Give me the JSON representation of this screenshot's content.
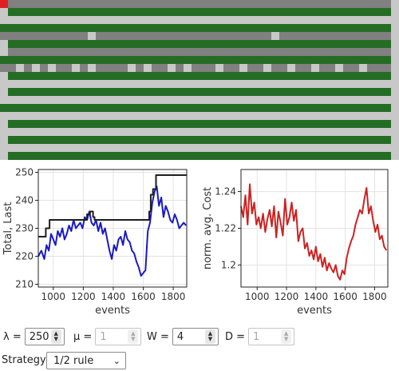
{
  "grid": {
    "colors": {
      "dark": "#256c25",
      "gray": "#808080",
      "light": "#c8c8c8",
      "red": "#e02020"
    },
    "rows": 20,
    "cols": 50,
    "cell": 10
  },
  "chart_data": [
    {
      "type": "line",
      "xlabel": "events",
      "ylabel": "Total, Last",
      "xlim": [
        900,
        1890
      ],
      "ylim": [
        209,
        251
      ],
      "xticks": [
        "1000",
        "1200",
        "1400",
        "1600",
        "1800"
      ],
      "xtick_values": [
        1000,
        1200,
        1400,
        1600,
        1800
      ],
      "yticks": [
        "210",
        "220",
        "230",
        "240",
        "250"
      ],
      "ytick_values": [
        210,
        220,
        230,
        240,
        250
      ],
      "series": [
        {
          "color": "#1a1ac4",
          "x": [
            900,
            920,
            940,
            955,
            970,
            985,
            1000,
            1015,
            1030,
            1045,
            1060,
            1075,
            1090,
            1105,
            1120,
            1135,
            1150,
            1165,
            1180,
            1195,
            1210,
            1225,
            1240,
            1255,
            1270,
            1285,
            1300,
            1315,
            1330,
            1345,
            1360,
            1375,
            1390,
            1405,
            1420,
            1435,
            1450,
            1465,
            1480,
            1495,
            1510,
            1525,
            1540,
            1555,
            1570,
            1585,
            1600,
            1615,
            1630,
            1645,
            1660,
            1675,
            1690,
            1705,
            1720,
            1735,
            1750,
            1765,
            1780,
            1795,
            1810,
            1825,
            1840,
            1855,
            1870,
            1885
          ],
          "y": [
            220,
            222,
            219,
            224,
            222,
            228,
            226,
            224,
            229,
            227,
            230,
            226,
            228,
            231,
            229,
            233,
            230,
            231,
            232,
            230,
            234,
            233,
            236,
            232,
            231,
            233,
            229,
            232,
            228,
            230,
            226,
            222,
            219,
            224,
            222,
            226,
            227,
            224,
            229,
            226,
            225,
            222,
            221,
            218,
            216,
            213,
            214,
            215,
            229,
            232,
            239,
            243,
            245,
            238,
            241,
            234,
            238,
            236,
            233,
            232,
            235,
            233,
            230,
            231,
            232,
            231
          ]
        },
        {
          "color": "#1e1e1e",
          "x": [
            900,
            950,
            950,
            975,
            975,
            1085,
            1085,
            1225,
            1225,
            1245,
            1245,
            1265,
            1265,
            1275,
            1275,
            1640,
            1640,
            1650,
            1650,
            1665,
            1665,
            1685,
            1685,
            1890
          ],
          "y": [
            227,
            227,
            230,
            230,
            233,
            233,
            233,
            233,
            235,
            235,
            236,
            236,
            234,
            234,
            233,
            233,
            236,
            236,
            242,
            242,
            244,
            244,
            249,
            249
          ]
        }
      ]
    },
    {
      "type": "line",
      "xlabel": "events",
      "ylabel": "norm. avg. Cost",
      "xlim": [
        890,
        1890
      ],
      "ylim": [
        1.188,
        1.252
      ],
      "xticks": [
        "1000",
        "1200",
        "1400",
        "1600",
        "1800"
      ],
      "xtick_values": [
        1000,
        1200,
        1400,
        1600,
        1800
      ],
      "yticks": [
        "1.2",
        "1.22",
        "1.24"
      ],
      "ytick_values": [
        1.2,
        1.22,
        1.24
      ],
      "series": [
        {
          "color": "#cc2222",
          "x": [
            890,
            905,
            920,
            935,
            950,
            965,
            980,
            995,
            1010,
            1025,
            1040,
            1055,
            1070,
            1085,
            1100,
            1115,
            1130,
            1145,
            1160,
            1175,
            1190,
            1205,
            1220,
            1235,
            1250,
            1265,
            1280,
            1295,
            1310,
            1325,
            1340,
            1355,
            1370,
            1385,
            1400,
            1415,
            1430,
            1445,
            1460,
            1475,
            1490,
            1505,
            1520,
            1535,
            1550,
            1565,
            1580,
            1595,
            1610,
            1625,
            1640,
            1655,
            1670,
            1685,
            1700,
            1715,
            1730,
            1745,
            1760,
            1775,
            1790,
            1805,
            1820,
            1835,
            1850,
            1865,
            1880
          ],
          "y": [
            1.232,
            1.226,
            1.238,
            1.222,
            1.244,
            1.228,
            1.234,
            1.222,
            1.226,
            1.22,
            1.228,
            1.218,
            1.225,
            1.23,
            1.221,
            1.232,
            1.215,
            1.229,
            1.223,
            1.216,
            1.236,
            1.222,
            1.226,
            1.234,
            1.224,
            1.23,
            1.213,
            1.218,
            1.22,
            1.209,
            1.212,
            1.205,
            1.208,
            1.203,
            1.21,
            1.202,
            1.206,
            1.199,
            1.204,
            1.197,
            1.201,
            1.198,
            1.196,
            1.2,
            1.194,
            1.192,
            1.197,
            1.195,
            1.204,
            1.209,
            1.213,
            1.216,
            1.222,
            1.226,
            1.23,
            1.228,
            1.236,
            1.242,
            1.228,
            1.232,
            1.224,
            1.218,
            1.222,
            1.214,
            1.216,
            1.21,
            1.208
          ]
        }
      ]
    }
  ],
  "controls": {
    "lambda": {
      "label": "λ =",
      "value": "250"
    },
    "mu": {
      "label": "μ =",
      "value": "1"
    },
    "w": {
      "label": "W =",
      "value": "4"
    },
    "d": {
      "label": "D =",
      "value": "1"
    },
    "strategy": {
      "label": "Strategy:",
      "selected": "1/2 rule"
    }
  }
}
